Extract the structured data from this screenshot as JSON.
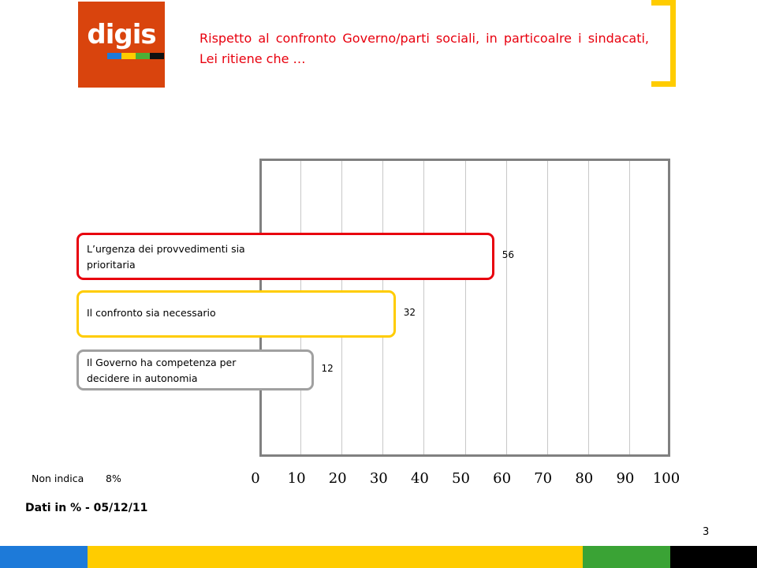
{
  "logo": {
    "text": "digis",
    "stripe_colors": [
      "#1d7ad9",
      "#ffcc00",
      "#4caf36",
      "#111111"
    ],
    "background": "#d9440d"
  },
  "title": "Rispetto al confronto Governo/parti sociali, in particoalre i sindacati, Lei ritiene che …",
  "chart_data": {
    "type": "bar",
    "orientation": "horizontal",
    "categories": [
      "L’urgenza dei provvedimenti sia prioritaria",
      "Il confronto sia necessario",
      "Il Governo ha competenza per decidere in autonomia"
    ],
    "values": [
      56,
      32,
      12
    ],
    "value_labels": [
      "56",
      "32",
      "12"
    ],
    "bar_colors": [
      "#e8000e",
      "#ffcc00",
      "#a0a0a0"
    ],
    "xlim": [
      0,
      100
    ],
    "ticks": [
      "0",
      "10",
      "20",
      "30",
      "40",
      "50",
      "60",
      "70",
      "80",
      "90",
      "100"
    ],
    "grid": true
  },
  "non_indica": {
    "label": "Non indica",
    "value": "8%"
  },
  "footnote": "Dati in % - 05/12/11",
  "page_number": "3",
  "footer_colors": [
    "#1d7ad9",
    "#ffcc00",
    "#3aa335",
    "#000000"
  ]
}
